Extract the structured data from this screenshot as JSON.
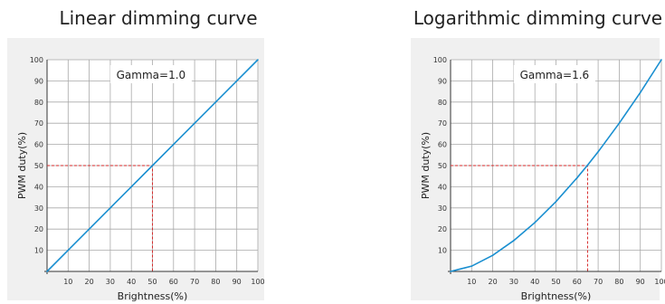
{
  "colors": {
    "panel_bg": "#f0f0f0",
    "plot_bg": "#ffffff",
    "grid": "#a9a9a9",
    "axis": "#333333",
    "curve": "#1a8fd0",
    "guide": "#d62a2a",
    "text": "#333333"
  },
  "chart_data": [
    {
      "type": "line",
      "title": "Linear dimming curve",
      "annotation": "Gamma=1.0",
      "gamma": 1.0,
      "xlabel": "Brightness(%)",
      "ylabel": "PWM duty(%)",
      "xlim": [
        0,
        100
      ],
      "ylim": [
        0,
        100
      ],
      "xticks": [
        "10",
        "20",
        "30",
        "40",
        "50",
        "60",
        "70",
        "80",
        "90",
        "100"
      ],
      "yticks": [
        "10",
        "20",
        "30",
        "40",
        "50",
        "60",
        "70",
        "80",
        "90",
        "100"
      ],
      "grid": true,
      "series": [
        {
          "x": [
            0,
            10,
            20,
            30,
            40,
            50,
            60,
            70,
            80,
            90,
            100
          ],
          "y": [
            0,
            10,
            20,
            30,
            40,
            50,
            60,
            70,
            80,
            90,
            100
          ]
        }
      ],
      "guide": {
        "x": 50,
        "y": 50
      }
    },
    {
      "type": "line",
      "title": "Logarithmic dimming curve",
      "annotation": "Gamma=1.6",
      "gamma": 1.6,
      "xlabel": "Brightness(%)",
      "ylabel": "PWM duty(%)",
      "xlim": [
        0,
        100
      ],
      "ylim": [
        0,
        100
      ],
      "xticks": [
        "10",
        "20",
        "30",
        "40",
        "50",
        "60",
        "70",
        "80",
        "90",
        "100"
      ],
      "yticks": [
        "10",
        "20",
        "30",
        "40",
        "50",
        "60",
        "70",
        "80",
        "90",
        "100"
      ],
      "grid": true,
      "series": [
        {
          "x": [
            0,
            10,
            20,
            30,
            40,
            50,
            60,
            65,
            70,
            80,
            90,
            100
          ],
          "y": [
            0,
            2.5,
            7.6,
            14.6,
            23.1,
            33.0,
            44.2,
            50.2,
            56.5,
            70.0,
            84.5,
            100
          ]
        }
      ],
      "guide": {
        "x": 65,
        "y": 50
      }
    }
  ]
}
